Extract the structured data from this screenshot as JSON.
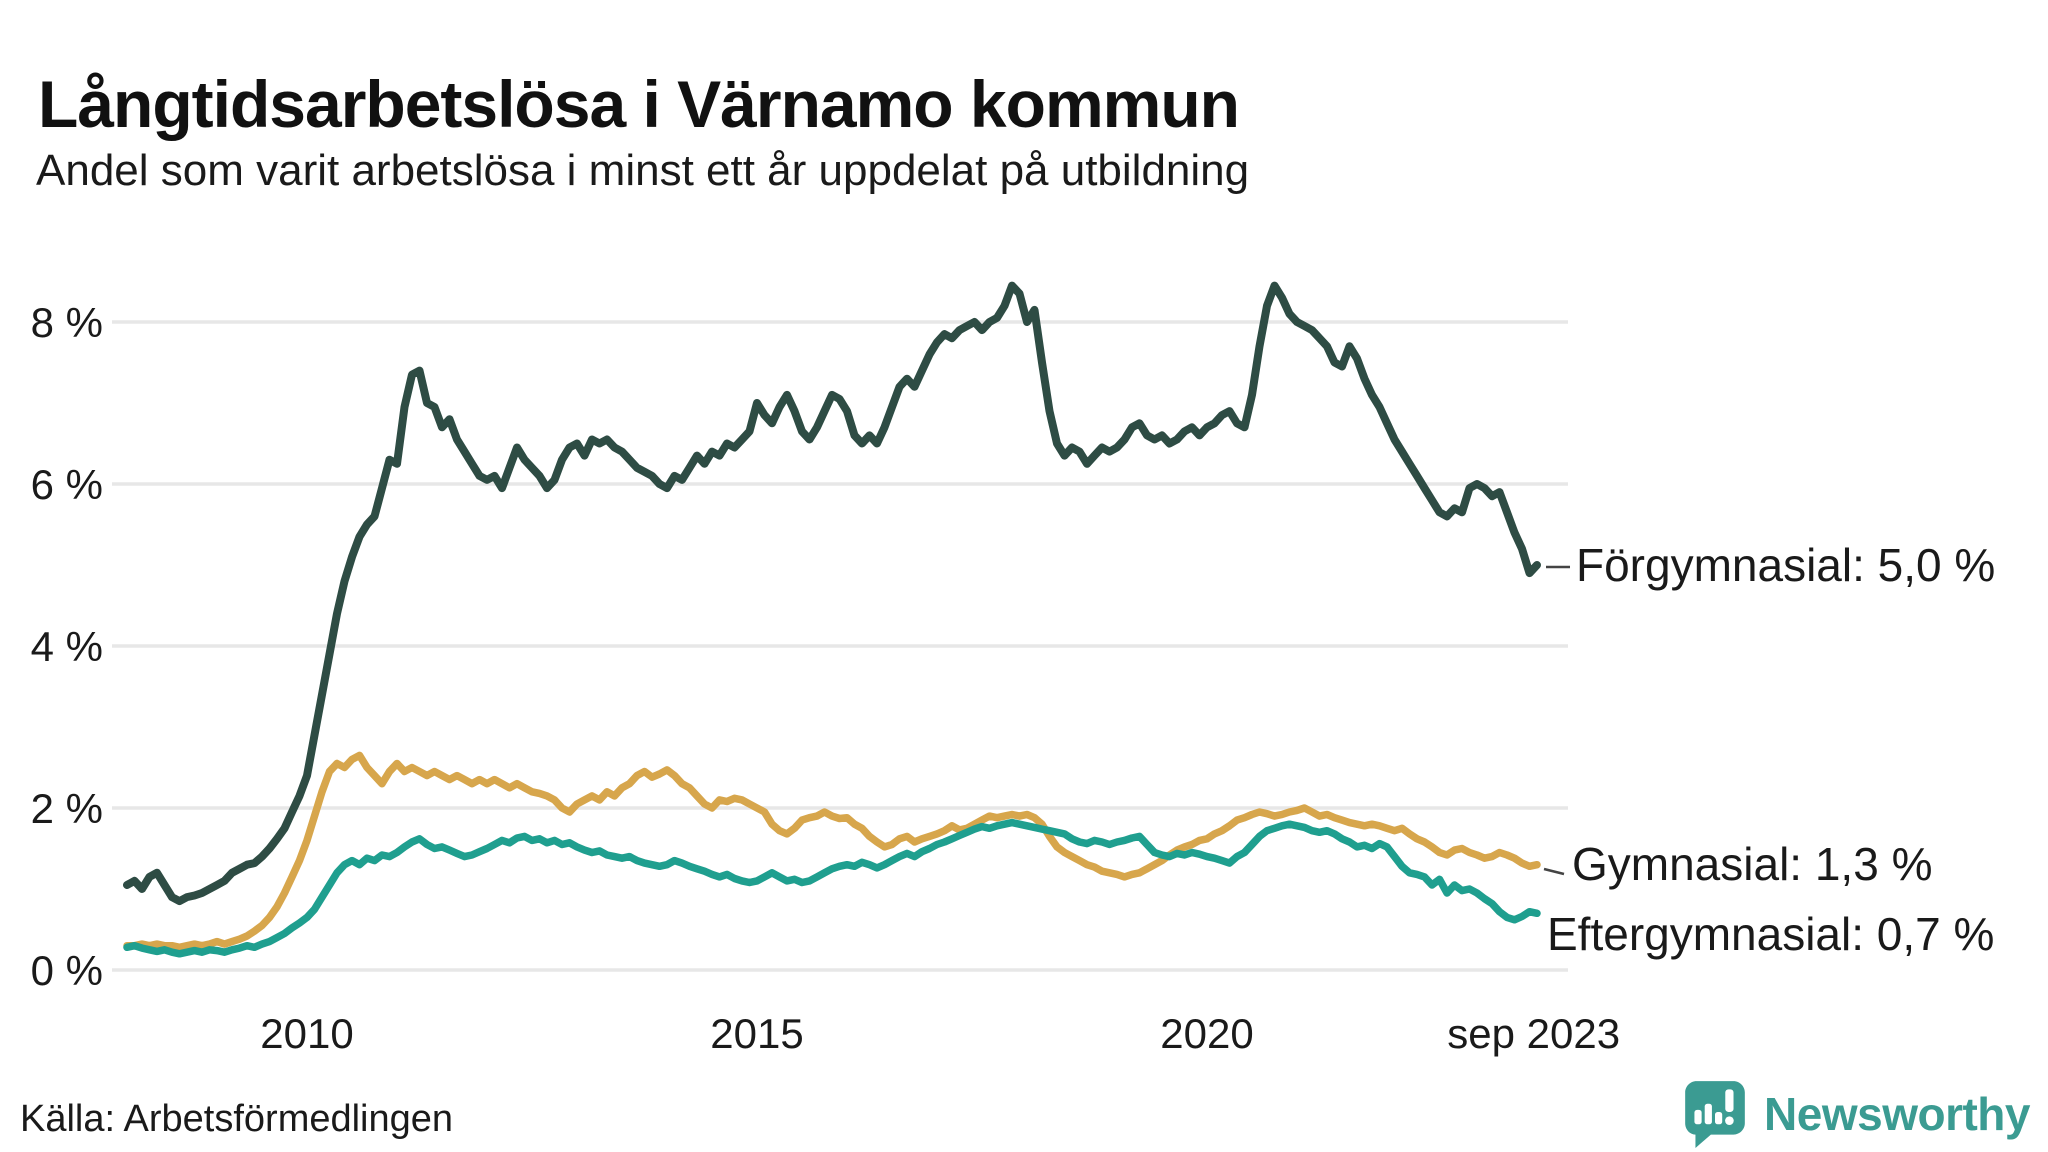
{
  "header": {
    "title": "Långtidsarbetslösa i Värnamo kommun",
    "subtitle": "Andel som varit arbetslösa i minst ett år uppdelat på utbildning"
  },
  "footer": {
    "source": "Källa: Arbetsförmedlingen",
    "logo_text": "Newsworthy"
  },
  "colors": {
    "forgymnasial": "#2e4c44",
    "gymnasial": "#d7a64c",
    "eftergymnasial": "#1f9f8f",
    "gridline": "#e7e7e7",
    "text": "#1a1a1a",
    "logo_teal": "#3b9b92"
  },
  "chart_data": {
    "type": "line",
    "title": "Långtidsarbetslösa i Värnamo kommun",
    "subtitle": "Andel som varit arbetslösa i minst ett år uppdelat på utbildning",
    "x_unit": "month",
    "x_start": 2008.0,
    "x_step": 0.0833333,
    "x_end_label": "sep 2023",
    "ylim": [
      0,
      8.7
    ],
    "grid": "horizontal",
    "legend_position": "right-end-labels",
    "yticks": [
      {
        "value": 0,
        "label": "0 %"
      },
      {
        "value": 2,
        "label": "2 %"
      },
      {
        "value": 4,
        "label": "4 %"
      },
      {
        "value": 6,
        "label": "6 %"
      },
      {
        "value": 8,
        "label": "8 %"
      }
    ],
    "xticks": [
      {
        "value": 2010,
        "label": "2010"
      },
      {
        "value": 2015,
        "label": "2015"
      },
      {
        "value": 2020,
        "label": "2020"
      },
      {
        "value": 2023.63,
        "label": "sep 2023"
      }
    ],
    "series": [
      {
        "name": "Förgymnasial",
        "end_label": "Förgymnasial: 5,0 %",
        "end_value": "5,0 %",
        "color": "#2e4c44",
        "values": [
          1.05,
          1.1,
          1.0,
          1.15,
          1.2,
          1.05,
          0.9,
          0.85,
          0.9,
          0.92,
          0.95,
          1.0,
          1.05,
          1.1,
          1.2,
          1.25,
          1.3,
          1.32,
          1.4,
          1.5,
          1.62,
          1.75,
          1.95,
          2.15,
          2.4,
          2.9,
          3.4,
          3.9,
          4.4,
          4.8,
          5.1,
          5.35,
          5.5,
          5.6,
          5.95,
          6.3,
          6.25,
          6.95,
          7.35,
          7.4,
          7.0,
          6.95,
          6.7,
          6.8,
          6.55,
          6.4,
          6.25,
          6.1,
          6.05,
          6.1,
          5.95,
          6.2,
          6.45,
          6.3,
          6.2,
          6.1,
          5.95,
          6.05,
          6.3,
          6.45,
          6.5,
          6.35,
          6.55,
          6.5,
          6.55,
          6.45,
          6.4,
          6.3,
          6.2,
          6.15,
          6.1,
          6.0,
          5.95,
          6.1,
          6.05,
          6.2,
          6.35,
          6.25,
          6.4,
          6.35,
          6.5,
          6.45,
          6.55,
          6.65,
          7.0,
          6.85,
          6.75,
          6.95,
          7.1,
          6.9,
          6.65,
          6.55,
          6.7,
          6.9,
          7.1,
          7.05,
          6.9,
          6.6,
          6.5,
          6.6,
          6.5,
          6.7,
          6.95,
          7.2,
          7.3,
          7.2,
          7.4,
          7.6,
          7.75,
          7.85,
          7.8,
          7.9,
          7.95,
          8.0,
          7.9,
          8.0,
          8.05,
          8.2,
          8.45,
          8.35,
          8.0,
          8.15,
          7.5,
          6.9,
          6.5,
          6.35,
          6.45,
          6.4,
          6.25,
          6.35,
          6.45,
          6.4,
          6.45,
          6.55,
          6.7,
          6.75,
          6.6,
          6.55,
          6.6,
          6.5,
          6.55,
          6.65,
          6.7,
          6.6,
          6.7,
          6.75,
          6.85,
          6.9,
          6.75,
          6.7,
          7.1,
          7.7,
          8.2,
          8.45,
          8.3,
          8.1,
          8.0,
          7.95,
          7.9,
          7.8,
          7.7,
          7.5,
          7.45,
          7.7,
          7.55,
          7.3,
          7.1,
          6.95,
          6.75,
          6.55,
          6.4,
          6.25,
          6.1,
          5.95,
          5.8,
          5.65,
          5.6,
          5.7,
          5.65,
          5.95,
          6.0,
          5.95,
          5.85,
          5.9,
          5.65,
          5.4,
          5.2,
          4.9,
          5.0
        ]
      },
      {
        "name": "Gymnasial",
        "end_label": "Gymnasial: 1,3 %",
        "end_value": "1,3 %",
        "color": "#d7a64c",
        "values": [
          0.3,
          0.3,
          0.32,
          0.3,
          0.32,
          0.3,
          0.3,
          0.28,
          0.3,
          0.32,
          0.3,
          0.32,
          0.35,
          0.32,
          0.35,
          0.38,
          0.42,
          0.48,
          0.55,
          0.65,
          0.78,
          0.95,
          1.15,
          1.35,
          1.6,
          1.9,
          2.2,
          2.45,
          2.55,
          2.5,
          2.6,
          2.65,
          2.5,
          2.4,
          2.3,
          2.45,
          2.55,
          2.45,
          2.5,
          2.45,
          2.4,
          2.45,
          2.4,
          2.35,
          2.4,
          2.35,
          2.3,
          2.35,
          2.3,
          2.35,
          2.3,
          2.25,
          2.3,
          2.25,
          2.2,
          2.18,
          2.15,
          2.1,
          2.0,
          1.95,
          2.05,
          2.1,
          2.15,
          2.1,
          2.2,
          2.15,
          2.25,
          2.3,
          2.4,
          2.45,
          2.38,
          2.42,
          2.47,
          2.4,
          2.3,
          2.25,
          2.15,
          2.05,
          2.0,
          2.1,
          2.08,
          2.12,
          2.1,
          2.05,
          2.0,
          1.95,
          1.8,
          1.72,
          1.68,
          1.75,
          1.85,
          1.88,
          1.9,
          1.95,
          1.9,
          1.87,
          1.88,
          1.8,
          1.75,
          1.65,
          1.58,
          1.52,
          1.55,
          1.62,
          1.65,
          1.58,
          1.62,
          1.65,
          1.68,
          1.72,
          1.78,
          1.73,
          1.75,
          1.8,
          1.85,
          1.9,
          1.88,
          1.9,
          1.92,
          1.9,
          1.92,
          1.88,
          1.8,
          1.65,
          1.52,
          1.45,
          1.4,
          1.35,
          1.3,
          1.27,
          1.22,
          1.2,
          1.18,
          1.15,
          1.18,
          1.2,
          1.25,
          1.3,
          1.35,
          1.42,
          1.48,
          1.52,
          1.55,
          1.6,
          1.62,
          1.68,
          1.72,
          1.78,
          1.85,
          1.88,
          1.92,
          1.95,
          1.93,
          1.9,
          1.92,
          1.95,
          1.97,
          2.0,
          1.95,
          1.9,
          1.92,
          1.88,
          1.85,
          1.82,
          1.8,
          1.78,
          1.8,
          1.78,
          1.75,
          1.72,
          1.75,
          1.68,
          1.62,
          1.58,
          1.52,
          1.45,
          1.42,
          1.48,
          1.5,
          1.45,
          1.42,
          1.38,
          1.4,
          1.45,
          1.42,
          1.38,
          1.32,
          1.28,
          1.3
        ]
      },
      {
        "name": "Eftergymnasial",
        "end_label": "Eftergymnasial: 0,7 %",
        "end_value": "0,7 %",
        "color": "#1f9f8f",
        "values": [
          0.28,
          0.3,
          0.27,
          0.25,
          0.23,
          0.25,
          0.22,
          0.2,
          0.22,
          0.24,
          0.22,
          0.25,
          0.24,
          0.22,
          0.25,
          0.27,
          0.3,
          0.28,
          0.32,
          0.35,
          0.4,
          0.45,
          0.52,
          0.58,
          0.65,
          0.75,
          0.9,
          1.05,
          1.2,
          1.3,
          1.35,
          1.3,
          1.38,
          1.35,
          1.42,
          1.4,
          1.45,
          1.52,
          1.58,
          1.62,
          1.55,
          1.5,
          1.52,
          1.48,
          1.44,
          1.4,
          1.42,
          1.46,
          1.5,
          1.55,
          1.6,
          1.57,
          1.63,
          1.65,
          1.6,
          1.62,
          1.57,
          1.6,
          1.55,
          1.57,
          1.52,
          1.48,
          1.45,
          1.47,
          1.42,
          1.4,
          1.38,
          1.4,
          1.35,
          1.32,
          1.3,
          1.28,
          1.3,
          1.35,
          1.32,
          1.28,
          1.25,
          1.22,
          1.18,
          1.15,
          1.18,
          1.13,
          1.1,
          1.08,
          1.1,
          1.15,
          1.2,
          1.15,
          1.1,
          1.12,
          1.08,
          1.1,
          1.15,
          1.2,
          1.25,
          1.28,
          1.3,
          1.28,
          1.33,
          1.3,
          1.26,
          1.3,
          1.35,
          1.4,
          1.44,
          1.4,
          1.46,
          1.5,
          1.55,
          1.58,
          1.62,
          1.66,
          1.7,
          1.74,
          1.77,
          1.75,
          1.78,
          1.8,
          1.82,
          1.8,
          1.78,
          1.76,
          1.74,
          1.72,
          1.7,
          1.68,
          1.62,
          1.58,
          1.56,
          1.6,
          1.58,
          1.55,
          1.58,
          1.6,
          1.63,
          1.65,
          1.55,
          1.45,
          1.42,
          1.4,
          1.44,
          1.42,
          1.45,
          1.43,
          1.4,
          1.38,
          1.35,
          1.32,
          1.4,
          1.45,
          1.55,
          1.65,
          1.72,
          1.75,
          1.78,
          1.8,
          1.78,
          1.76,
          1.72,
          1.7,
          1.72,
          1.68,
          1.62,
          1.58,
          1.52,
          1.54,
          1.5,
          1.56,
          1.52,
          1.4,
          1.28,
          1.2,
          1.18,
          1.15,
          1.05,
          1.12,
          0.95,
          1.05,
          0.98,
          1.0,
          0.95,
          0.88,
          0.82,
          0.72,
          0.65,
          0.62,
          0.66,
          0.72,
          0.7
        ]
      }
    ]
  }
}
